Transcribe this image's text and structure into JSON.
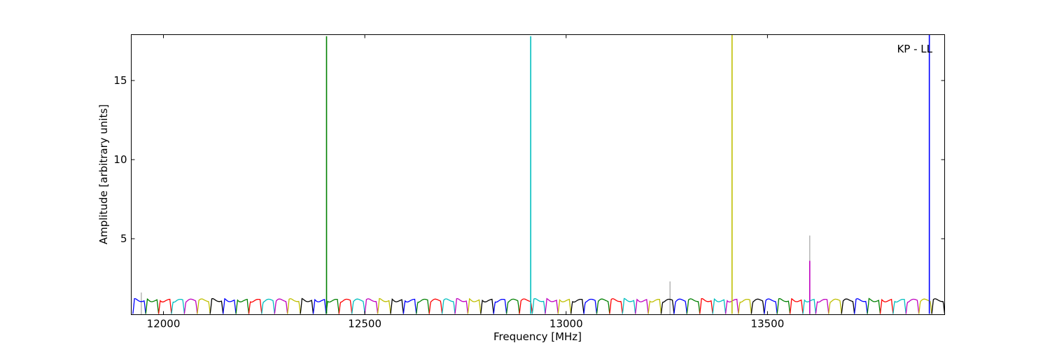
{
  "chart_data": {
    "type": "line",
    "title": "",
    "xlabel": "Frequency [MHz]",
    "ylabel": "Amplitude [arbitrary units]",
    "xlim": [
      11920,
      13940
    ],
    "ylim": [
      0.2,
      17.9
    ],
    "xticks": [
      12000,
      12500,
      13000,
      13500
    ],
    "yticks": [
      5,
      10,
      15
    ],
    "grid": false,
    "legend": "none",
    "annotation": "KP - LL",
    "colors": [
      "#0000ff",
      "#008000",
      "#ff0000",
      "#00bfbf",
      "#bf00bf",
      "#bfbf00",
      "#000000"
    ],
    "channel_width_mhz": 32,
    "channel_start_mhz": 11924,
    "channel_baseline": 1.1,
    "edge_low": 0.25,
    "background_spikes": [
      {
        "x": 11945,
        "y": 1.6,
        "color": "#aaaaaa"
      },
      {
        "x": 13258,
        "y": 2.3,
        "color": "#aaaaaa"
      },
      {
        "x": 13605,
        "y": 5.2,
        "color": "#aaaaaa"
      }
    ],
    "spikes": [
      {
        "x": 12405,
        "y": 17.8,
        "color": "#008000"
      },
      {
        "x": 12912,
        "y": 17.8,
        "color": "#00bfbf"
      },
      {
        "x": 13412,
        "y": 17.9,
        "color": "#bfbf00"
      },
      {
        "x": 13605,
        "y": 3.6,
        "color": "#bf00bf"
      },
      {
        "x": 13902,
        "y": 17.9,
        "color": "#0000ff"
      }
    ]
  }
}
